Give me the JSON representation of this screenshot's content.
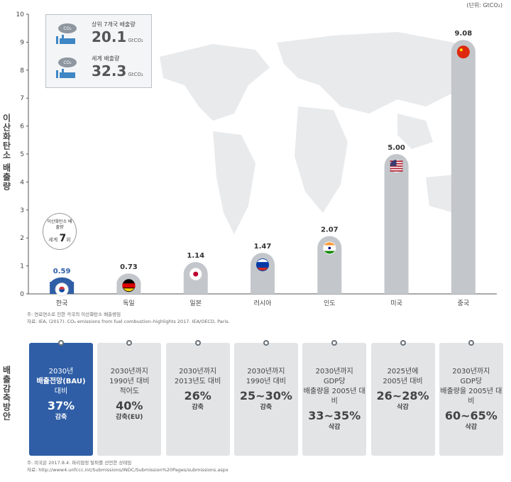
{
  "unit_note": "(단위: GtCO₂)",
  "y_axis_label": "이산화탄소 배출량",
  "reduction_label": "배출감축방안",
  "legend": {
    "top": {
      "label": "상위 7개국 배출량",
      "value": "20.1",
      "unit": "GtCO₂",
      "icon_text": "CO₂"
    },
    "bottom": {
      "label": "세계 배출량",
      "value": "32.3",
      "unit": "GtCO₂",
      "icon_text": "CO₂"
    }
  },
  "rank_bubble": {
    "label": "이산화탄소 배출량",
    "prefix": "세계",
    "rank": "7",
    "suffix": "위"
  },
  "source_chart": [
    "주: 연료연소로 인한 각국의 이산화탄소 배출량임",
    "자료: IEA, (2017). CO₂ emissions from fuel combustion–highlights 2017. IEA/OECD, Paris."
  ],
  "source_plans": [
    "주: 미국은 2017.8.4. 파리협정 탈퇴를 선언한 상태임",
    "자료: http://www4.unfccc.int/Submissions/INDC/Submission%20Pages/submissions.aspx"
  ],
  "colors": {
    "bar": "#c3c7cb",
    "highlight_value": "#2f5ea6",
    "highlight_card": "#2f5ea6",
    "card": "#e2e4e6",
    "map": "#e8eaec"
  },
  "chart_data": {
    "type": "bar",
    "categories": [
      "한국",
      "독일",
      "일본",
      "러시아",
      "인도",
      "미국",
      "중국"
    ],
    "values": [
      0.59,
      0.73,
      1.14,
      1.47,
      2.07,
      5.0,
      9.08
    ],
    "value_labels": [
      "0.59",
      "0.73",
      "1.14",
      "1.47",
      "2.07",
      "5.00",
      "9.08"
    ],
    "ylim": [
      0,
      10
    ],
    "yticks": [
      0,
      1,
      2,
      3,
      4,
      5,
      6,
      7,
      8,
      9,
      10
    ],
    "highlight_index": 0,
    "flags": [
      "korea-flag-icon",
      "germany-flag-icon",
      "japan-flag-icon",
      "russia-flag-icon",
      "india-flag-icon",
      "usa-flag-icon",
      "china-flag-icon"
    ],
    "grid": false,
    "xlabel": "",
    "ylabel": "이산화탄소 배출량"
  },
  "plans": [
    {
      "lines": [
        "2030년",
        "배출전망(BAU)",
        "대비"
      ],
      "big": "37%",
      "action": "감축",
      "highlight": true
    },
    {
      "lines": [
        "2030년까지",
        "1990년 대비",
        "적어도"
      ],
      "big": "40%",
      "action": "감축(EU)",
      "highlight": false
    },
    {
      "lines": [
        "2030년까지",
        "2013년도 대비",
        ""
      ],
      "big": "26%",
      "action": "감축",
      "highlight": false
    },
    {
      "lines": [
        "2030년까지",
        "1990년 대비",
        ""
      ],
      "big": "25~30%",
      "action": "감축",
      "highlight": false
    },
    {
      "lines": [
        "2030년까지",
        "GDP당",
        "배출량을 2005년 대비"
      ],
      "big": "33~35%",
      "action": "삭감",
      "highlight": false
    },
    {
      "lines": [
        "2025년에",
        "2005년 대비",
        ""
      ],
      "big": "26~28%",
      "action": "삭감",
      "highlight": false
    },
    {
      "lines": [
        "2030년까지",
        "GDP당",
        "배출량을 2005년 대비"
      ],
      "big": "60~65%",
      "action": "삭감",
      "highlight": false
    }
  ]
}
